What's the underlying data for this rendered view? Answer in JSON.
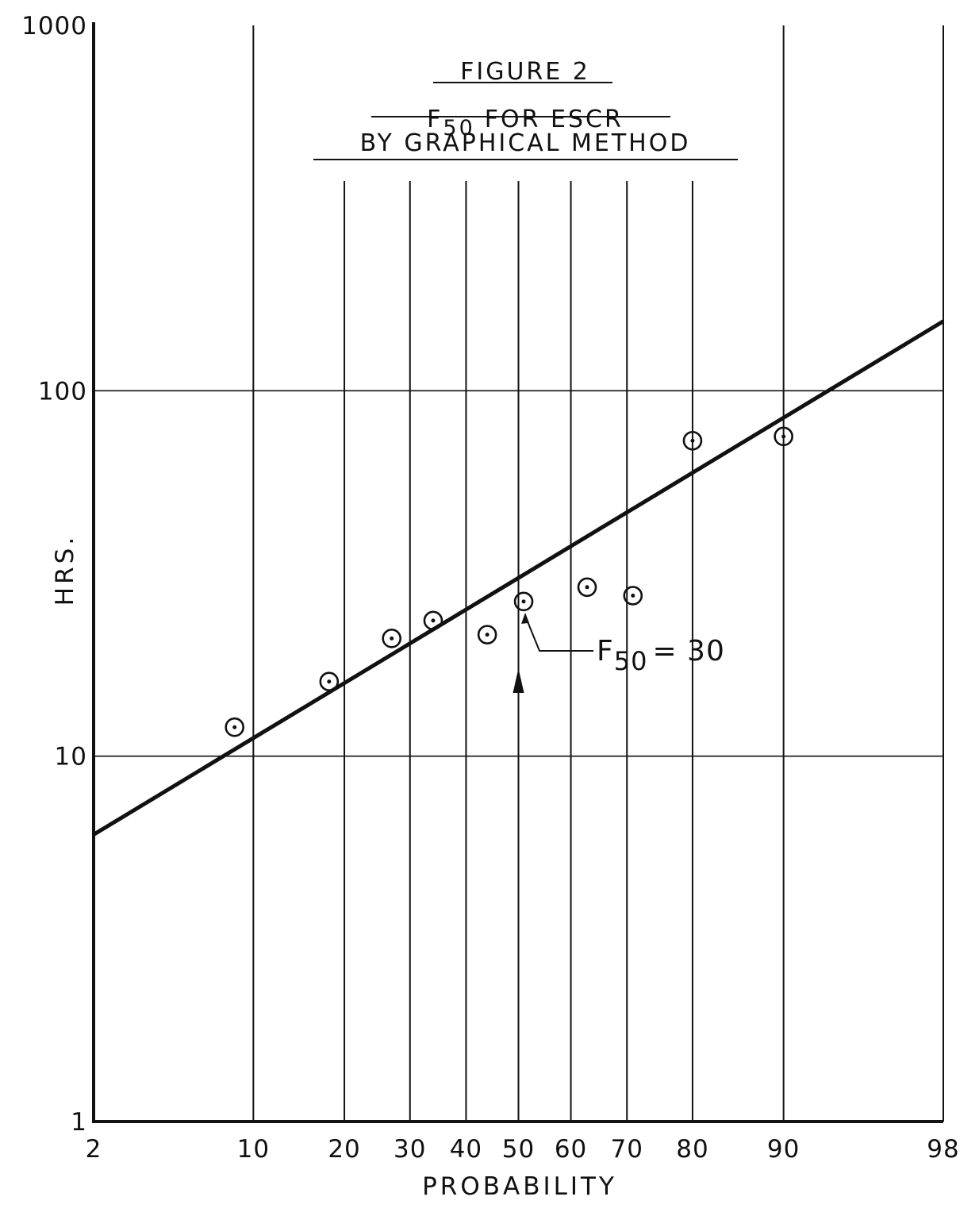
{
  "chart_data": {
    "type": "scatter",
    "title": "FIGURE 2",
    "subtitle_f": "F",
    "subtitle_sub": "50",
    "subtitle_rest": "FOR ESCR",
    "subtitle2": "BY GRAPHICAL METHOD",
    "xlabel": "PROBABILITY",
    "ylabel": "HRS.",
    "x_scale": "probability",
    "y_scale": "log",
    "xlim": [
      2,
      98
    ],
    "ylim": [
      1,
      1000
    ],
    "x_ticks": [
      {
        "value": 2,
        "label": "2"
      },
      {
        "value": 10,
        "label": "10"
      },
      {
        "value": 20,
        "label": "20"
      },
      {
        "value": 30,
        "label": "30"
      },
      {
        "value": 40,
        "label": "40"
      },
      {
        "value": 50,
        "label": "50"
      },
      {
        "value": 60,
        "label": "60"
      },
      {
        "value": 70,
        "label": "70"
      },
      {
        "value": 80,
        "label": "80"
      },
      {
        "value": 90,
        "label": "90"
      },
      {
        "value": 98,
        "label": "98"
      }
    ],
    "y_ticks": [
      {
        "value": 1,
        "label": "1"
      },
      {
        "value": 10,
        "label": "10"
      },
      {
        "value": 100,
        "label": "100"
      },
      {
        "value": 1000,
        "label": "1000"
      }
    ],
    "grid": true,
    "series": [
      {
        "kind": "points",
        "x": [
          8.5,
          18,
          27,
          34,
          44,
          51,
          63,
          71,
          80,
          90
        ],
        "y": [
          12,
          16,
          21,
          23.5,
          21.5,
          26.5,
          29,
          27.5,
          73,
          75
        ]
      },
      {
        "kind": "fit_line",
        "x": [
          2,
          98
        ],
        "y": [
          6.1,
          155
        ]
      }
    ],
    "annotation": {
      "f": "F",
      "sub": "50",
      "rest": "= 30",
      "x": 50,
      "y": 30
    }
  }
}
